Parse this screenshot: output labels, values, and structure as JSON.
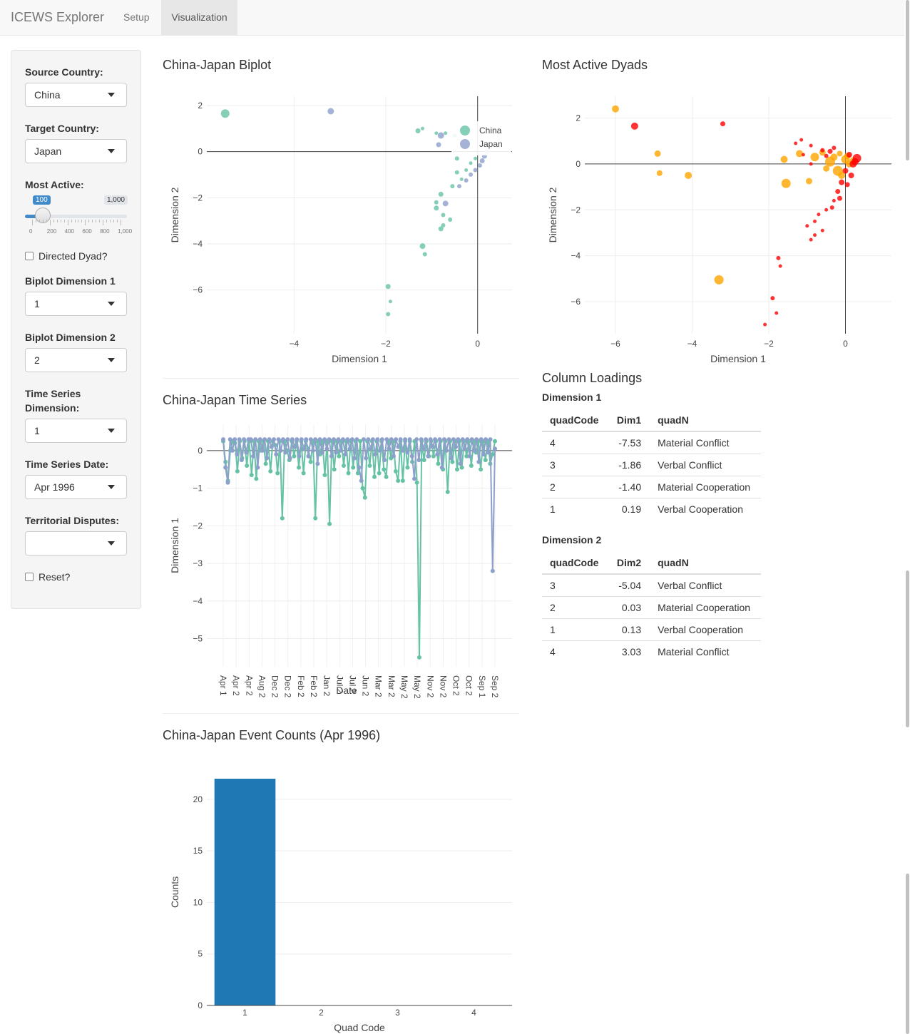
{
  "navbar": {
    "brand": "ICEWS Explorer",
    "tabs": [
      "Setup",
      "Visualization"
    ],
    "active_tab": "Visualization"
  },
  "sidebar": {
    "source_country": {
      "label": "Source Country:",
      "value": "China"
    },
    "target_country": {
      "label": "Target Country:",
      "value": "Japan"
    },
    "most_active": {
      "label": "Most Active:",
      "value": 100,
      "max_label": "1,000",
      "ticks": [
        "0",
        "200",
        "400",
        "600",
        "800",
        "1,000"
      ],
      "min": 0,
      "max": 1000
    },
    "directed_dyad": {
      "label": "Directed Dyad?",
      "checked": false
    },
    "biplot_dim1": {
      "label": "Biplot Dimension 1",
      "value": "1"
    },
    "biplot_dim2": {
      "label": "Biplot Dimension 2",
      "value": "2"
    },
    "ts_dimension": {
      "label_line1": "Time Series",
      "label_line2": "Dimension:",
      "value": "1"
    },
    "ts_date": {
      "label": "Time Series Date:",
      "value": "Apr 1996"
    },
    "territorial": {
      "label": "Territorial Disputes:",
      "value": ""
    },
    "reset": {
      "label": "Reset?",
      "checked": false
    }
  },
  "sections": {
    "biplot_title": "China-Japan Biplot",
    "dyads_title": "Most Active Dyads",
    "timeseries_title": "China-Japan Time Series",
    "counts_title": "China-Japan Event Counts (Apr 1996)",
    "loadings_title": "Column Loadings"
  },
  "colors": {
    "china": "#66c2a5",
    "japan": "#8da0cb",
    "bar": "#1f77b4",
    "dyad_small": "#ff0000",
    "dyad_large": "#ffa500"
  },
  "loadings": {
    "dim1": {
      "title": "Dimension 1",
      "headers": [
        "quadCode",
        "Dim1",
        "quadN"
      ],
      "rows": [
        [
          "4",
          "-7.53",
          "Material Conflict"
        ],
        [
          "3",
          "-1.86",
          "Verbal Conflict"
        ],
        [
          "2",
          "-1.40",
          "Material Cooperation"
        ],
        [
          "1",
          "0.19",
          "Verbal Cooperation"
        ]
      ]
    },
    "dim2": {
      "title": "Dimension 2",
      "headers": [
        "quadCode",
        "Dim2",
        "quadN"
      ],
      "rows": [
        [
          "3",
          "-5.04",
          "Verbal Conflict"
        ],
        [
          "2",
          "0.03",
          "Material Cooperation"
        ],
        [
          "1",
          "0.13",
          "Verbal Cooperation"
        ],
        [
          "4",
          "3.03",
          "Material Conflict"
        ]
      ]
    }
  },
  "chart_data": [
    {
      "type": "scatter",
      "title": "China-Japan Biplot",
      "xlabel": "Dimension 1",
      "ylabel": "Dimension 2",
      "xlim": [
        -5.9,
        0.75
      ],
      "ylim": [
        -7.9,
        2.4
      ],
      "xticks": [
        "−4",
        "−2",
        "0"
      ],
      "xtick_values": [
        -4,
        -2,
        0
      ],
      "yticks": [
        "2",
        "0",
        "−2",
        "−4",
        "−6"
      ],
      "ytick_values": [
        2,
        0,
        -2,
        -4,
        -6
      ],
      "legend_position": "top-right",
      "series": [
        {
          "name": "China",
          "points": [
            [
              -5.5,
              1.65,
              6
            ],
            [
              -1.3,
              0.9,
              3.5
            ],
            [
              -1.2,
              1.0,
              2.5
            ],
            [
              -0.9,
              0.8,
              2.5
            ],
            [
              -0.7,
              0.8,
              2.5
            ],
            [
              -0.5,
              0.7,
              3
            ],
            [
              -0.45,
              -0.3,
              3
            ],
            [
              -0.45,
              -0.9,
              3
            ],
            [
              -0.55,
              -1.5,
              3
            ],
            [
              -0.8,
              -1.85,
              3.5
            ],
            [
              -0.9,
              -2.2,
              3
            ],
            [
              -0.9,
              -2.45,
              3.5
            ],
            [
              -0.75,
              -2.75,
              3
            ],
            [
              -0.6,
              -2.95,
              3
            ],
            [
              -0.75,
              -3.2,
              3
            ],
            [
              -0.8,
              -3.35,
              3.5
            ],
            [
              -1.2,
              -4.1,
              4
            ],
            [
              -1.15,
              -4.45,
              3
            ],
            [
              -1.95,
              -5.85,
              3.5
            ],
            [
              -1.9,
              -6.5,
              2.5
            ],
            [
              -1.95,
              -7.05,
              3
            ],
            [
              -0.35,
              -1.2,
              2.5
            ],
            [
              -0.25,
              -0.8,
              2.5
            ],
            [
              -0.15,
              -0.5,
              2.5
            ],
            [
              -0.05,
              -0.3,
              2.5
            ]
          ]
        },
        {
          "name": "Japan",
          "points": [
            [
              -3.2,
              1.75,
              4.5
            ],
            [
              -0.8,
              0.7,
              4.5
            ],
            [
              -0.85,
              0.3,
              3.5
            ],
            [
              -0.7,
              -2.25,
              4
            ],
            [
              0.2,
              0.0,
              3.5
            ],
            [
              0.15,
              -0.2,
              3.5
            ],
            [
              0.1,
              -0.4,
              3.5
            ],
            [
              0.05,
              -0.6,
              3
            ],
            [
              -0.05,
              -0.8,
              3
            ],
            [
              -0.15,
              -1.0,
              3
            ],
            [
              -0.25,
              -1.25,
              3
            ],
            [
              -0.4,
              -1.5,
              3
            ]
          ]
        }
      ]
    },
    {
      "type": "scatter",
      "title": "Most Active Dyads",
      "xlabel": "Dimension 1",
      "ylabel": "Dimension 2",
      "xlim": [
        -6.8,
        1.2
      ],
      "ylim": [
        -7.4,
        2.95
      ],
      "xticks": [
        "−6",
        "−4",
        "−2",
        "0"
      ],
      "xtick_values": [
        -6,
        -4,
        -2,
        0
      ],
      "yticks": [
        "2",
        "0",
        "−2",
        "−4",
        "−6"
      ],
      "ytick_values": [
        2,
        0,
        -2,
        -4,
        -6
      ],
      "series": [
        {
          "name": "",
          "color": "#ffa500",
          "points": [
            [
              -6.0,
              2.4,
              5
            ],
            [
              -4.9,
              0.45,
              4.5
            ],
            [
              -4.85,
              -0.4,
              4
            ],
            [
              -4.1,
              -0.5,
              5
            ],
            [
              -3.3,
              -5.05,
              6.5
            ],
            [
              -1.55,
              -0.85,
              6.5
            ],
            [
              -1.2,
              0.45,
              5
            ],
            [
              -1.6,
              0.2,
              5
            ],
            [
              -0.95,
              -0.75,
              4.5
            ],
            [
              -0.6,
              0.5,
              4.5
            ],
            [
              -0.4,
              0.1,
              7
            ],
            [
              -0.2,
              -0.3,
              7
            ],
            [
              0.0,
              0.2,
              6
            ],
            [
              0.1,
              0.0,
              5
            ],
            [
              -0.3,
              0.3,
              5
            ],
            [
              -0.1,
              -0.5,
              5
            ],
            [
              -0.8,
              0.3,
              6
            ],
            [
              0.2,
              0.15,
              4.5
            ],
            [
              -0.5,
              -0.2,
              4.5
            ],
            [
              0.05,
              0.35,
              4.5
            ],
            [
              -0.15,
              0.45,
              4
            ]
          ]
        },
        {
          "name": "",
          "color": "#ff0000",
          "points": [
            [
              -5.5,
              1.65,
              5
            ],
            [
              -3.2,
              1.75,
              3.5
            ],
            [
              -1.9,
              -5.85,
              3
            ],
            [
              -1.8,
              -6.5,
              2.5
            ],
            [
              -2.1,
              -7.0,
              2.5
            ],
            [
              -1.75,
              -4.1,
              3
            ],
            [
              -1.7,
              -4.45,
              2.5
            ],
            [
              -1.15,
              1.05,
              2.5
            ],
            [
              -1.3,
              0.9,
              2.5
            ],
            [
              -0.9,
              0.8,
              2.5
            ],
            [
              -0.7,
              -2.2,
              2.5
            ],
            [
              -0.8,
              -2.5,
              2.5
            ],
            [
              -1.0,
              -2.7,
              2.5
            ],
            [
              -0.9,
              -3.3,
              2.5
            ],
            [
              -0.8,
              -3.1,
              2.5
            ],
            [
              -0.6,
              -2.9,
              2.5
            ],
            [
              -0.5,
              -2.0,
              2.5
            ],
            [
              -0.3,
              -1.6,
              2.5
            ],
            [
              0.3,
              0.25,
              6
            ],
            [
              0.2,
              0.0,
              5
            ],
            [
              0.1,
              0.4,
              4
            ],
            [
              0.0,
              -0.3,
              4
            ],
            [
              -0.1,
              -0.8,
              4
            ],
            [
              -0.2,
              -1.2,
              3.5
            ],
            [
              -0.4,
              0.55,
              3.5
            ],
            [
              -0.6,
              0.6,
              3
            ],
            [
              -0.3,
              0.7,
              3
            ],
            [
              0.15,
              -0.5,
              4
            ],
            [
              0.05,
              -0.9,
              3.5
            ],
            [
              -0.15,
              -1.5,
              3.5
            ],
            [
              -0.35,
              -1.9,
              3
            ],
            [
              0.25,
              0.1,
              5
            ],
            [
              -0.5,
              0.35,
              3
            ],
            [
              -0.9,
              0.0,
              2.5
            ],
            [
              -1.1,
              0.4,
              2.5
            ]
          ]
        }
      ]
    },
    {
      "type": "line",
      "title": "China-Japan Time Series",
      "xlabel": "Date",
      "ylabel": "Dimension 1",
      "ylim": [
        -5.75,
        0.7
      ],
      "yticks": [
        "0",
        "−1",
        "−2",
        "−3",
        "−4",
        "−5"
      ],
      "ytick_values": [
        0,
        -1,
        -2,
        -3,
        -4,
        -5
      ],
      "xticks": [
        "Apr 1",
        "Apr 2",
        "Apr 2",
        "Aug 2",
        "Dec 2",
        "Dec 2",
        "Feb 2",
        "Feb 2",
        "Jan 2",
        "Jul 2",
        "Jul 2",
        "Jun 2",
        "Mar 2",
        "Mar 2",
        "May 2",
        "May 2",
        "Nov 2",
        "Nov 2",
        "Oct 2",
        "Oct 2",
        "Sep 1",
        "Sep 2"
      ],
      "series": [
        {
          "name": "China",
          "values": [
            0.25,
            -0.3,
            -0.8,
            0.0,
            0.25,
            0.2,
            -0.55,
            0.25,
            -0.2,
            0.25,
            -0.4,
            0.25,
            -0.65,
            0.25,
            -0.75,
            0.25,
            0.0,
            0.25,
            -0.35,
            0.25,
            -0.55,
            0.25,
            0.15,
            -0.6,
            0.25,
            -1.8,
            0.25,
            0.0,
            -0.25,
            0.25,
            -0.15,
            0.25,
            -0.45,
            0.25,
            -0.6,
            0.25,
            0.05,
            -0.3,
            0.25,
            -1.8,
            0.25,
            -0.1,
            0.25,
            -0.65,
            0.25,
            -1.95,
            0.25,
            -0.5,
            0.25,
            -0.15,
            0.25,
            -0.4,
            0.25,
            -0.6,
            0.25,
            -0.45,
            0.25,
            -0.6,
            0.25,
            -1.0,
            -1.25,
            0.25,
            -0.4,
            0.25,
            -0.7,
            0.25,
            -0.6,
            0.25,
            -0.5,
            -0.7,
            0.25,
            -0.2,
            0.25,
            -0.55,
            -0.8,
            0.25,
            -0.8,
            0.25,
            -0.45,
            0.25,
            -0.3,
            0.25,
            -0.85,
            -5.5,
            0.25,
            -0.25,
            0.25,
            -0.15,
            0.25,
            -0.15,
            0.25,
            -0.35,
            0.25,
            -0.5,
            0.25,
            -1.1,
            0.25,
            -0.3,
            0.25,
            -0.5,
            0.25,
            -0.45,
            0.25,
            -0.15,
            0.25,
            -0.4,
            0.25,
            -0.05,
            0.25,
            -0.5,
            0.25,
            -0.25,
            0.25,
            -0.35,
            -0.1,
            0.25
          ]
        },
        {
          "name": "Japan",
          "values": [
            0.3,
            -0.45,
            -0.85,
            0.3,
            0.0,
            0.3,
            -0.1,
            0.3,
            -0.25,
            0.3,
            -0.05,
            0.3,
            0.3,
            -0.15,
            0.3,
            -0.45,
            0.3,
            0.0,
            0.3,
            -0.2,
            0.3,
            0.1,
            0.3,
            -0.1,
            0.3,
            0.0,
            0.3,
            -0.05,
            0.3,
            -0.2,
            0.3,
            0.1,
            0.3,
            -0.15,
            0.3,
            0.05,
            0.3,
            -0.15,
            0.3,
            0.0,
            0.3,
            -0.35,
            0.3,
            -0.05,
            0.3,
            0.05,
            0.3,
            -0.15,
            0.3,
            -0.05,
            0.3,
            0.0,
            0.3,
            -0.1,
            0.3,
            0.05,
            0.3,
            -0.2,
            0.3,
            -0.45,
            -0.8,
            0.3,
            -0.2,
            0.3,
            0.05,
            0.3,
            -0.1,
            0.3,
            0.0,
            0.3,
            -0.25,
            0.3,
            0.05,
            0.3,
            -0.15,
            0.3,
            0.1,
            0.3,
            0.0,
            0.3,
            -0.05,
            0.3,
            -0.15,
            -0.75,
            0.3,
            -0.25,
            0.3,
            0.05,
            0.3,
            -0.15,
            0.3,
            0.1,
            0.3,
            -0.1,
            0.3,
            -0.45,
            0.3,
            0.0,
            0.3,
            -0.2,
            0.3,
            0.1,
            0.3,
            -0.35,
            0.3,
            0.05,
            0.3,
            -0.15,
            0.3,
            0.0,
            0.3,
            -0.3,
            0.3,
            -0.1,
            0.3,
            -0.05,
            0.3,
            -3.2,
            0.05
          ]
        }
      ]
    },
    {
      "type": "bar",
      "title": "China-Japan Event Counts (Apr 1996)",
      "xlabel": "Quad Code",
      "ylabel": "Counts",
      "categories": [
        "1",
        "2",
        "3",
        "4"
      ],
      "values": [
        22,
        0,
        0,
        0
      ],
      "ylim": [
        0,
        22
      ],
      "yticks": [
        "0",
        "5",
        "10",
        "15",
        "20"
      ],
      "ytick_values": [
        0,
        5,
        10,
        15,
        20
      ]
    }
  ]
}
